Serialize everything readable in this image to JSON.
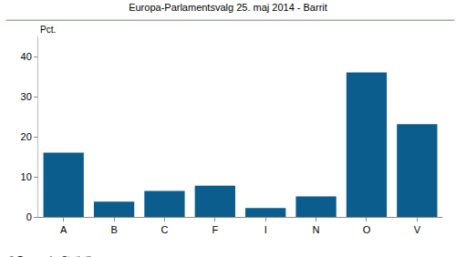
{
  "chart_data": {
    "type": "bar",
    "title": "Europa-Parlamentsvalg 25. maj 2014 - Barrit",
    "ylabel": "Pct.",
    "categories": [
      "A",
      "B",
      "C",
      "F",
      "I",
      "N",
      "O",
      "V"
    ],
    "values": [
      16,
      3.8,
      6.5,
      7.8,
      2.2,
      5.1,
      36,
      23.1
    ],
    "color": "#0b5d8e",
    "ylim": [
      0,
      45
    ],
    "yticks": [
      0,
      10,
      20,
      30,
      40
    ],
    "grid": false,
    "annotations": [
      {
        "text": "© Danmarks Statistik"
      }
    ]
  }
}
